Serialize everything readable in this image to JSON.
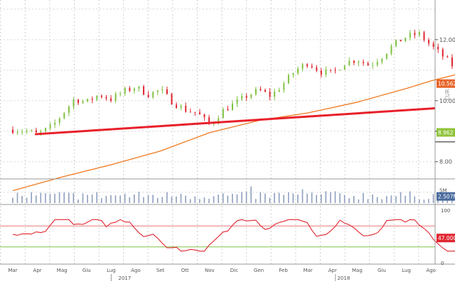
{
  "chart_data": [
    {
      "type": "candlestick",
      "panel": "price",
      "y_label": "EUR",
      "yticks": [
        {
          "value": 8.0,
          "label": "8.00"
        },
        {
          "value": 10.0,
          "label": "10.00"
        },
        {
          "value": 12.0,
          "label": "12.00"
        }
      ],
      "ylim": [
        6.9,
        13.3
      ],
      "x_months": [
        "Mar",
        "Apr",
        "Mag",
        "Giu",
        "Lug",
        "Ago",
        "Set",
        "Ott",
        "Nov",
        "Dic",
        "Gen",
        "Feb",
        "Mar",
        "Apr",
        "Mag",
        "Giu",
        "Lug",
        "Ago"
      ],
      "x_years": [
        {
          "label": "2017",
          "month_index": 10
        },
        {
          "label": "2018",
          "month_index": 22
        }
      ],
      "price_path": [
        [
          0,
          9.05
        ],
        [
          0.6,
          9.0
        ],
        [
          1,
          8.9
        ],
        [
          1.6,
          9.15
        ],
        [
          2,
          9.55
        ],
        [
          2.5,
          10.05
        ],
        [
          3,
          9.95
        ],
        [
          3.5,
          10.2
        ],
        [
          4,
          10.05
        ],
        [
          4.5,
          10.3
        ],
        [
          5,
          10.45
        ],
        [
          5.5,
          10.2
        ],
        [
          6,
          10.35
        ],
        [
          6.5,
          9.95
        ],
        [
          7,
          9.7
        ],
        [
          7.5,
          9.6
        ],
        [
          8,
          9.2
        ],
        [
          8.5,
          9.65
        ],
        [
          9,
          9.9
        ],
        [
          9.5,
          10.15
        ],
        [
          10,
          10.35
        ],
        [
          10.5,
          10.15
        ],
        [
          11,
          10.55
        ],
        [
          11.5,
          11.0
        ],
        [
          12,
          11.25
        ],
        [
          12.5,
          10.95
        ],
        [
          13,
          10.9
        ],
        [
          13.5,
          11.25
        ],
        [
          14,
          11.35
        ],
        [
          14.5,
          11.15
        ],
        [
          15,
          11.45
        ],
        [
          15.5,
          11.85
        ],
        [
          16,
          12.1
        ],
        [
          16.5,
          12.2
        ],
        [
          17,
          11.8
        ],
        [
          17.5,
          11.45
        ],
        [
          18,
          11.05
        ],
        [
          18.5,
          10.95
        ],
        [
          19,
          10.7
        ],
        [
          19.5,
          10.75
        ],
        [
          20,
          10.2
        ],
        [
          20.5,
          9.75
        ],
        [
          21,
          9.95
        ],
        [
          21.5,
          9.65
        ],
        [
          22,
          9.85
        ],
        [
          22.5,
          10.05
        ],
        [
          23,
          10.3
        ],
        [
          23.5,
          10.45
        ],
        [
          24,
          10.75
        ],
        [
          24.5,
          10.5
        ],
        [
          25,
          10.15
        ],
        [
          25.5,
          10.0
        ],
        [
          26,
          9.45
        ],
        [
          26.5,
          8.95
        ],
        [
          27,
          8.85
        ],
        [
          27.5,
          8.8
        ],
        [
          28,
          8.95
        ]
      ],
      "moving_average": {
        "color": "#f07a20",
        "points": [
          [
            0,
            7.05
          ],
          [
            2,
            7.5
          ],
          [
            4,
            7.9
          ],
          [
            6,
            8.35
          ],
          [
            8,
            8.95
          ],
          [
            10,
            9.35
          ],
          [
            12,
            9.6
          ],
          [
            14,
            9.95
          ],
          [
            16,
            10.4
          ],
          [
            17,
            10.65
          ],
          [
            18,
            10.85
          ],
          [
            20,
            10.95
          ],
          [
            22,
            11.0
          ],
          [
            24,
            11.05
          ],
          [
            26,
            11.0
          ],
          [
            27,
            10.9
          ]
        ],
        "last_value": "10.562"
      },
      "trendline": {
        "color": "#e8202a",
        "start": [
          0.9,
          8.9
        ],
        "end": [
          30,
          9.75
        ]
      },
      "horizontal_lines": [
        {
          "y": 9.0,
          "start": 26.3,
          "end": 29.5,
          "color": "#333333"
        },
        {
          "y": 8.65,
          "start": 26.4,
          "end": 29.5,
          "color": "#333333"
        }
      ],
      "last_price_label": "8.962",
      "last_price_color": "#8fc43a",
      "ma_label_color": "#e8652a",
      "up_color": "#7fc242",
      "down_color": "#e0252f"
    },
    {
      "type": "bar",
      "panel": "volume",
      "ytick": {
        "value": 5,
        "label": "5M"
      },
      "ylim": [
        0,
        7.5
      ],
      "color": "#8e9fbe",
      "last_value_label": "2.507M",
      "last_value_color": "#4a6b9d"
    },
    {
      "type": "line",
      "panel": "rsi",
      "yticks": [
        {
          "value": 100,
          "label": "100"
        },
        {
          "value": 0,
          "label": "0"
        }
      ],
      "ylim": [
        0,
        100
      ],
      "levels": [
        {
          "value": 70,
          "color": "#e57a7a"
        },
        {
          "value": 30,
          "color": "#7fc242"
        }
      ],
      "color": "#e0252f",
      "last_value_label": "47.0006",
      "last_value_color": "#e0252f"
    }
  ]
}
